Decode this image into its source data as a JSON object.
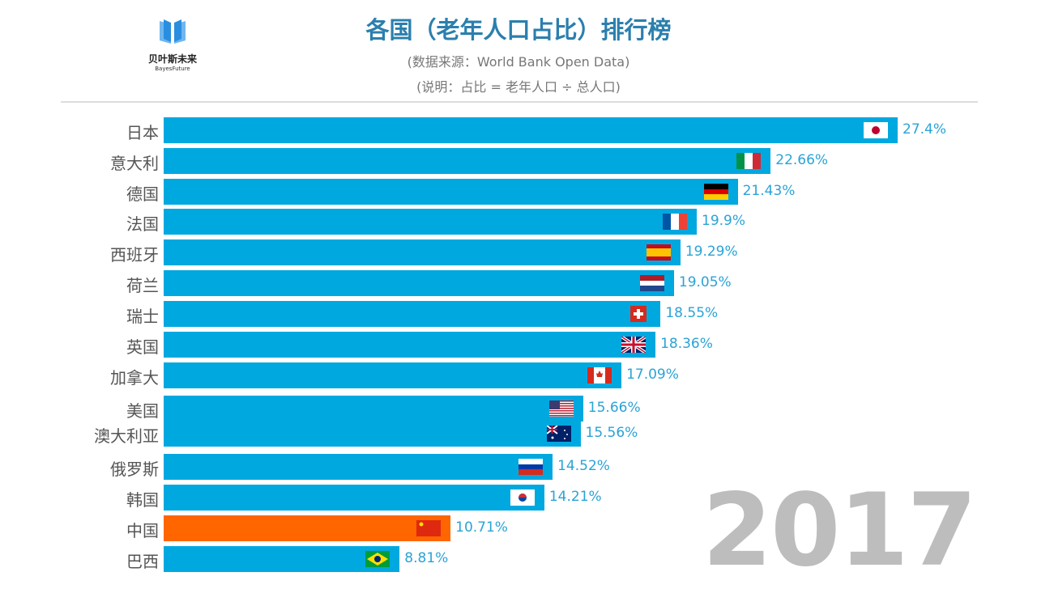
{
  "header": {
    "logo_name": "贝叶斯未来",
    "logo_en": "BayesFuture",
    "title": "各国（老年人口占比）排行榜",
    "source": "(数据来源：World Bank Open Data)",
    "note": "(说明：占比 = 老年人口 ÷ 总人口)"
  },
  "chart_data": {
    "type": "bar",
    "orientation": "horizontal",
    "year": "2017",
    "categories": [
      "日本",
      "意大利",
      "德国",
      "法国",
      "西班牙",
      "荷兰",
      "瑞士",
      "英国",
      "加拿大",
      "美国",
      "澳大利亚",
      "俄罗斯",
      "韩国",
      "中国",
      "巴西"
    ],
    "values": [
      27.4,
      22.66,
      21.43,
      19.9,
      19.29,
      19.05,
      18.55,
      18.36,
      17.09,
      15.66,
      15.56,
      14.52,
      14.21,
      10.71,
      8.81
    ],
    "value_labels": [
      "27.4%",
      "22.66%",
      "21.43%",
      "19.9%",
      "19.29%",
      "19.05%",
      "18.55%",
      "18.36%",
      "17.09%",
      "15.66%",
      "15.56%",
      "14.52%",
      "14.21%",
      "10.71%",
      "8.81%"
    ],
    "flags": [
      "jp",
      "it",
      "de",
      "fr",
      "es",
      "nl",
      "ch",
      "gb",
      "ca",
      "us",
      "au",
      "ru",
      "kr",
      "cn",
      "br"
    ],
    "colors": {
      "default": "#00a8e0",
      "highlight": "#ff6600",
      "highlight_category": "中国",
      "value_text": "#2aa3d6",
      "year_text": "#bdbdbd"
    },
    "xlim": [
      0,
      27.4
    ]
  }
}
